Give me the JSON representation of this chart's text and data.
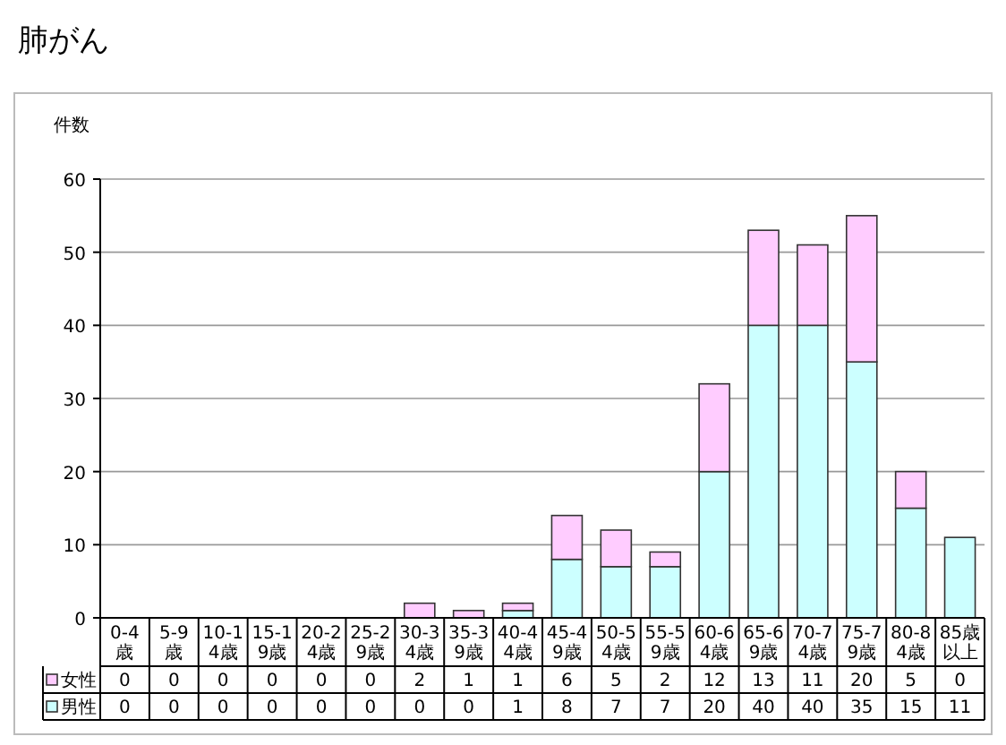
{
  "chart_data": {
    "type": "bar",
    "title": "肺がん",
    "ylabel": "件数",
    "stacked": true,
    "grid": "y",
    "legend": "bottom left",
    "data_labels": true,
    "categories": [
      "0-4歳",
      "5-9歳",
      "10-14歳",
      "15-19歳",
      "20-24歳",
      "25-29歳",
      "30-34歳",
      "35-39歳",
      "40-44歳",
      "45-49歳",
      "50-54歳",
      "55-59歳",
      "60-64歳",
      "65-69歳",
      "70-74歳",
      "75-79歳",
      "80-84歳",
      "85歳以上"
    ],
    "ylim": [
      0,
      60
    ],
    "yticks": [
      0,
      10,
      20,
      30,
      40,
      50,
      60
    ],
    "series": [
      {
        "name": "男性",
        "color": "#ccffff",
        "values": [
          0,
          0,
          0,
          0,
          0,
          0,
          0,
          0,
          1,
          8,
          7,
          7,
          20,
          40,
          40,
          35,
          15,
          11
        ]
      },
      {
        "name": "女性",
        "color": "#ffccff",
        "values": [
          0,
          0,
          0,
          0,
          0,
          0,
          2,
          1,
          1,
          6,
          5,
          2,
          12,
          13,
          11,
          20,
          5,
          0
        ]
      }
    ]
  }
}
